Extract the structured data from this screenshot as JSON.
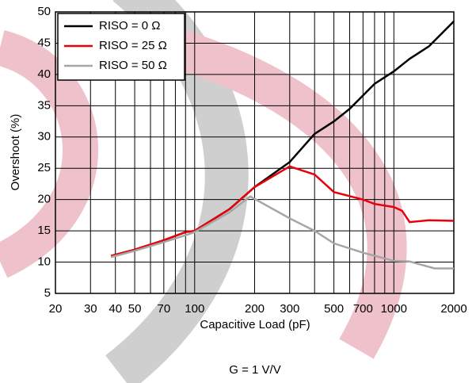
{
  "chart_data": {
    "type": "line",
    "x_label": "Capacitive Load (pF)",
    "y_label": "Overshoot (%)",
    "footnote": "G = 1 V/V",
    "xscale": "log",
    "grid": true,
    "legend": "upper left",
    "xlim": [
      20,
      2000
    ],
    "ylim": [
      5,
      50
    ],
    "xticks": [
      20,
      30,
      40,
      50,
      70,
      100,
      200,
      300,
      500,
      700,
      1000,
      2000
    ],
    "xminor": [
      60,
      80,
      90,
      400,
      600,
      800,
      900
    ],
    "yticks": [
      5,
      10,
      15,
      20,
      25,
      30,
      35,
      40,
      45,
      50
    ],
    "series": [
      {
        "name": "RISO = 0 Ω",
        "color": "#000000",
        "x": [
          38,
          50,
          70,
          90,
          100,
          150,
          200,
          300,
          400,
          500,
          600,
          800,
          1000,
          1200,
          1500,
          2000
        ],
        "values": [
          11,
          12,
          13.5,
          14.8,
          15,
          18.5,
          22,
          26,
          30.5,
          32.5,
          34.5,
          38.5,
          40.5,
          42.5,
          44.5,
          48.5
        ]
      },
      {
        "name": "RISO = 25 Ω",
        "color": "#e8000b",
        "x": [
          38,
          50,
          70,
          90,
          100,
          150,
          200,
          300,
          400,
          500,
          700,
          800,
          1000,
          1100,
          1200,
          1500,
          2000
        ],
        "values": [
          11,
          12,
          13.5,
          14.8,
          15,
          18.5,
          22,
          25.3,
          24,
          21.2,
          20,
          19.3,
          18.8,
          18.2,
          16.4,
          16.7,
          16.6
        ]
      },
      {
        "name": "RISO = 50 Ω",
        "color": "#a6a6a6",
        "x": [
          38,
          50,
          70,
          90,
          100,
          150,
          190,
          300,
          400,
          500,
          700,
          1000,
          1200,
          1600,
          2000
        ],
        "values": [
          10.8,
          11.8,
          13.2,
          14.3,
          14.8,
          18,
          20.5,
          17,
          15,
          13,
          11.5,
          10.2,
          10.1,
          9,
          9
        ]
      }
    ]
  }
}
